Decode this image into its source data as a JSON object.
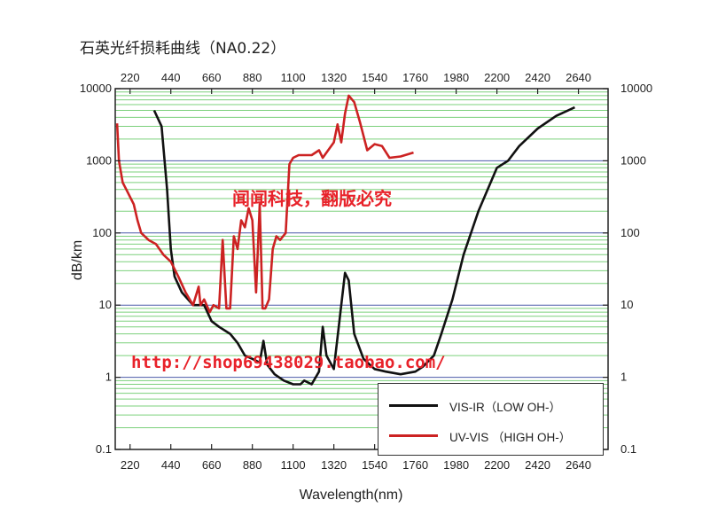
{
  "title": "石英光纤损耗曲线（NA0.22）",
  "watermarks": {
    "brand": "闻闻科技，翻版必究",
    "url": "http://shop69438029.taobao.com/"
  },
  "colors": {
    "vis_ir": "#111111",
    "uv_vis": "#cc2222",
    "grid_minor": "#7bd07b",
    "grid_major": "#4a5aa8",
    "watermark": "#e8222a"
  },
  "chart_data": {
    "type": "line",
    "title": "石英光纤损耗曲线（NA0.22）",
    "xlabel": "Wavelength(nm)",
    "ylabel": "dB/km",
    "y_scale": "log",
    "xlim": [
      140,
      2800
    ],
    "ylim": [
      0.1,
      10000
    ],
    "x_ticks": [
      220,
      440,
      660,
      880,
      1100,
      1320,
      1540,
      1760,
      1980,
      2200,
      2420,
      2640
    ],
    "y_tick_labels_left": [
      "10000",
      "1000",
      "100",
      "10",
      "1",
      "0.1"
    ],
    "y_tick_labels_right": [
      "10000",
      "1000",
      "100",
      "10",
      "1",
      "0.1"
    ],
    "y_tick_values": [
      10000,
      1000,
      100,
      10,
      1,
      0.1
    ],
    "grid": true,
    "legend_position": "bottom-right",
    "series": [
      {
        "name": "VIS-IR（LOW OH-）",
        "x": [
          350,
          390,
          420,
          440,
          460,
          500,
          560,
          620,
          660,
          700,
          760,
          800,
          840,
          880,
          920,
          940,
          960,
          1000,
          1050,
          1100,
          1140,
          1160,
          1200,
          1240,
          1260,
          1280,
          1320,
          1350,
          1380,
          1400,
          1430,
          1480,
          1540,
          1600,
          1680,
          1760,
          1800,
          1860,
          1900,
          1960,
          2020,
          2100,
          2200,
          2260,
          2320,
          2420,
          2520,
          2620
        ],
        "y": [
          5000,
          3000,
          400,
          60,
          25,
          15,
          10,
          10,
          6,
          5,
          4,
          3,
          2,
          1.8,
          1.6,
          3.2,
          1.5,
          1.1,
          0.9,
          0.8,
          0.8,
          0.9,
          0.8,
          1.2,
          5,
          2,
          1.3,
          6,
          28,
          22,
          4,
          1.8,
          1.3,
          1.2,
          1.1,
          1.2,
          1.4,
          2,
          4,
          12,
          50,
          200,
          800,
          1000,
          1600,
          2800,
          4200,
          5500
        ]
      },
      {
        "name": "UV-VIS （HIGH OH-）",
        "x": [
          150,
          160,
          180,
          200,
          240,
          260,
          280,
          320,
          360,
          400,
          440,
          480,
          520,
          560,
          590,
          600,
          620,
          650,
          670,
          700,
          720,
          740,
          760,
          780,
          800,
          820,
          840,
          860,
          880,
          900,
          920,
          935,
          950,
          970,
          990,
          1010,
          1030,
          1060,
          1080,
          1100,
          1130,
          1160,
          1200,
          1240,
          1260,
          1280,
          1320,
          1340,
          1360,
          1380,
          1400,
          1430,
          1460,
          1500,
          1540,
          1580,
          1620,
          1680,
          1750
        ],
        "y": [
          3300,
          1000,
          500,
          400,
          250,
          150,
          100,
          80,
          70,
          50,
          40,
          25,
          15,
          10,
          18,
          10,
          12,
          8,
          10,
          9,
          80,
          9,
          9,
          90,
          60,
          150,
          120,
          220,
          150,
          15,
          250,
          9,
          9,
          12,
          60,
          90,
          80,
          100,
          900,
          1100,
          1200,
          1200,
          1200,
          1400,
          1100,
          1300,
          1800,
          3200,
          1800,
          4500,
          8000,
          6500,
          3500,
          1400,
          1700,
          1600,
          1100,
          1150,
          1300
        ]
      }
    ]
  }
}
